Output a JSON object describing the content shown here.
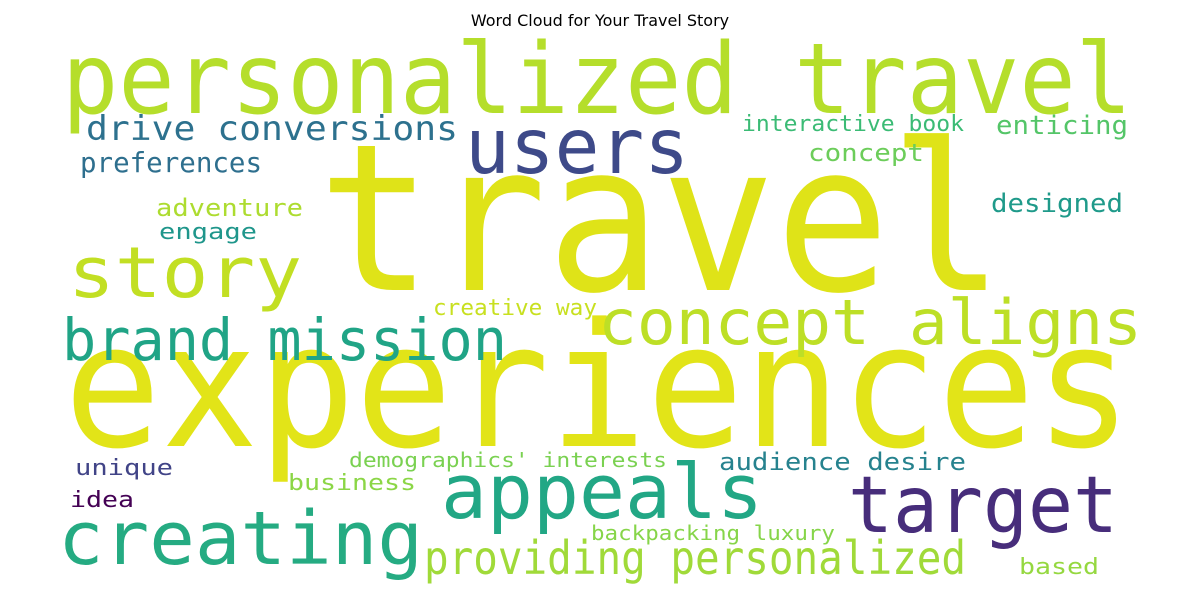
{
  "title": "Word Cloud for Your Travel Story",
  "words": [
    {
      "text": "travel",
      "color": "#dfe318"
    },
    {
      "text": "experiences",
      "color": "#e2e418"
    },
    {
      "text": "personalized travel",
      "color": "#b5de2b"
    },
    {
      "text": "users",
      "color": "#3e4a89"
    },
    {
      "text": "story",
      "color": "#c2df23"
    },
    {
      "text": "concept aligns",
      "color": "#bddf26"
    },
    {
      "text": "brand mission",
      "color": "#20a486"
    },
    {
      "text": "appeals",
      "color": "#22a785"
    },
    {
      "text": "target",
      "color": "#472d7b"
    },
    {
      "text": "creating",
      "color": "#25ab82"
    },
    {
      "text": "providing personalized",
      "color": "#a0da39"
    },
    {
      "text": "drive conversions",
      "color": "#2d718e"
    },
    {
      "text": "preferences",
      "color": "#2e6f8e"
    },
    {
      "text": "interactive book",
      "color": "#3bbb75"
    },
    {
      "text": "enticing",
      "color": "#54c568"
    },
    {
      "text": "concept",
      "color": "#6ccd5a"
    },
    {
      "text": "designed",
      "color": "#1f9a8a"
    },
    {
      "text": "adventure",
      "color": "#addc30"
    },
    {
      "text": "engage",
      "color": "#1f968b"
    },
    {
      "text": "creative way",
      "color": "#c8e020"
    },
    {
      "text": "unique",
      "color": "#414487"
    },
    {
      "text": "demographics' interests",
      "color": "#7ad151"
    },
    {
      "text": "audience desire",
      "color": "#26828e"
    },
    {
      "text": "business",
      "color": "#8bd646"
    },
    {
      "text": "idea",
      "color": "#440154"
    },
    {
      "text": "backpacking luxury",
      "color": "#86d549"
    },
    {
      "text": "based",
      "color": "#95d840"
    }
  ]
}
